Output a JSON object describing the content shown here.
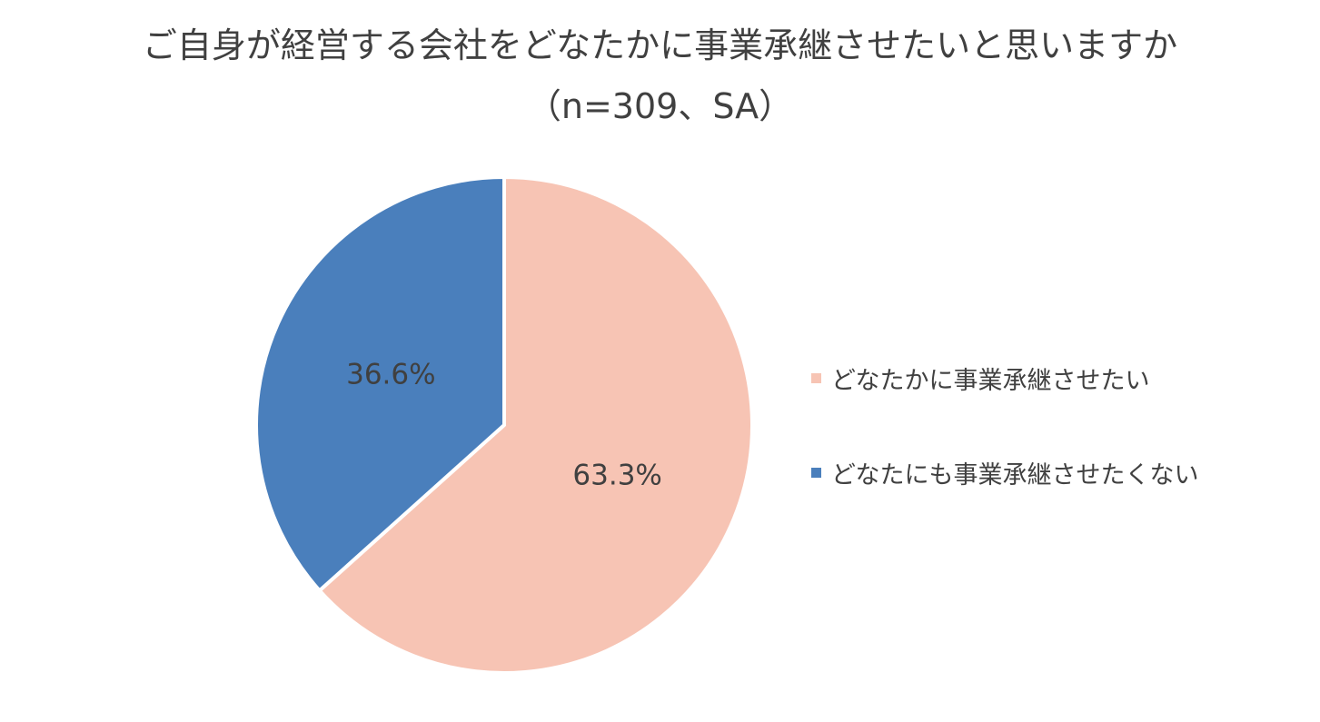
{
  "chart_data": {
    "type": "pie",
    "title": "ご自身が経営する会社をどなたかに事業承継させたいと思いますか",
    "subtitle": "（n=309、SA）",
    "categories": [
      "どなたかに事業承継させたい",
      "どなたにも事業承継させたくない"
    ],
    "values": [
      63.3,
      36.6
    ],
    "data_labels": [
      "63.3%",
      "36.6%"
    ],
    "colors": [
      "#F7C4B4",
      "#4A7FBC"
    ],
    "start_angle_deg": 0,
    "direction": "clockwise",
    "legend_position": "right"
  }
}
